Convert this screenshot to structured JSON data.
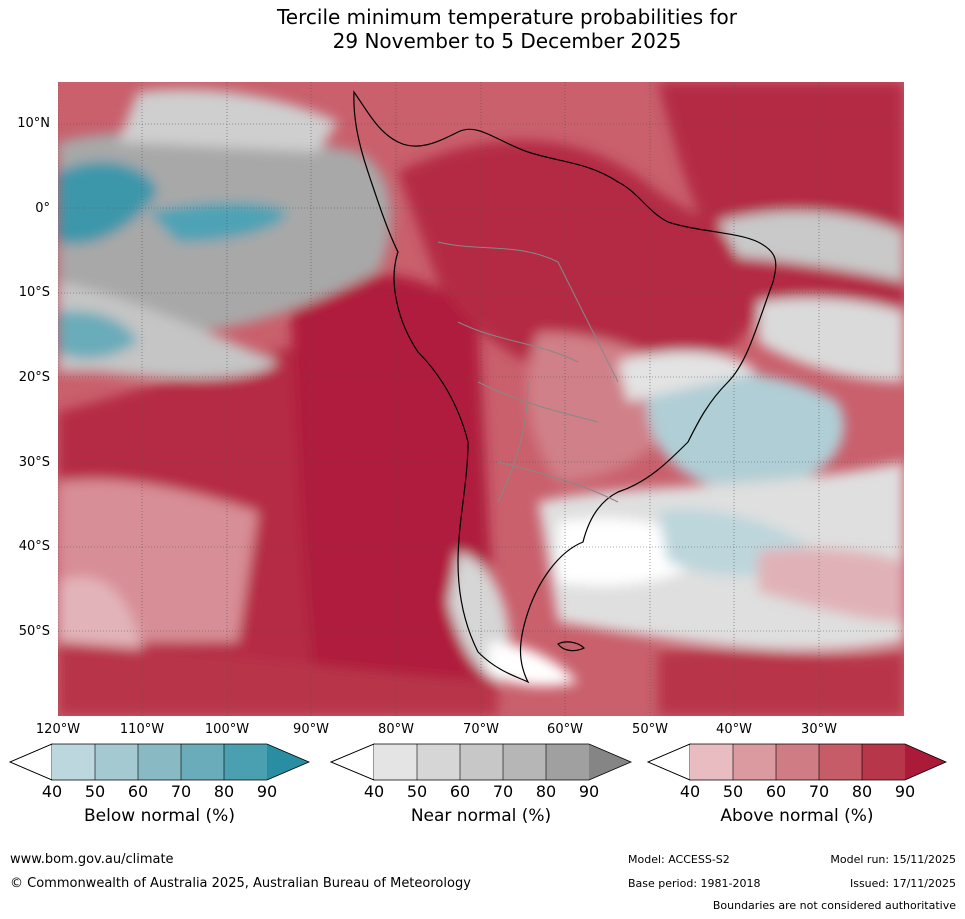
{
  "title": {
    "line1": "Tercile minimum temperature probabilities for",
    "line2": "29 November to 5 December 2025"
  },
  "map": {
    "lat_labels": [
      "10°N",
      "0°",
      "10°S",
      "20°S",
      "30°S",
      "40°S",
      "50°S"
    ],
    "lon_labels": [
      "120°W",
      "110°W",
      "100°W",
      "90°W",
      "80°W",
      "70°W",
      "60°W",
      "50°W",
      "40°W",
      "30°W"
    ]
  },
  "colorbars": {
    "below": {
      "label": "Below normal (%)",
      "ticks": [
        "40",
        "50",
        "60",
        "70",
        "80",
        "90"
      ],
      "colors": [
        "#bdd7de",
        "#a5c9d1",
        "#89bac4",
        "#6aacb9",
        "#4a9fb0",
        "#2a8ea3"
      ]
    },
    "near": {
      "label": "Near normal (%)",
      "ticks": [
        "40",
        "50",
        "60",
        "70",
        "80",
        "90"
      ],
      "colors": [
        "#e4e4e4",
        "#d6d6d6",
        "#c7c7c7",
        "#b6b6b6",
        "#a0a0a0",
        "#858585"
      ]
    },
    "above": {
      "label": "Above normal (%)",
      "ticks": [
        "40",
        "50",
        "60",
        "70",
        "80",
        "90"
      ],
      "colors": [
        "#e8bcc0",
        "#db9aa0",
        "#d07c84",
        "#c55c68",
        "#b8364a",
        "#ab1a38"
      ]
    }
  },
  "footer": {
    "website": "www.bom.gov.au/climate",
    "copyright": "© Commonwealth of Australia 2025, Australian Bureau of Meteorology",
    "model": "Model: ACCESS-S2",
    "base_period": "Base period: 1981-2018",
    "model_run": "Model run: 15/11/2025",
    "issued": "Issued: 17/11/2025",
    "disclaimer": "Boundaries are not considered authoritative"
  }
}
